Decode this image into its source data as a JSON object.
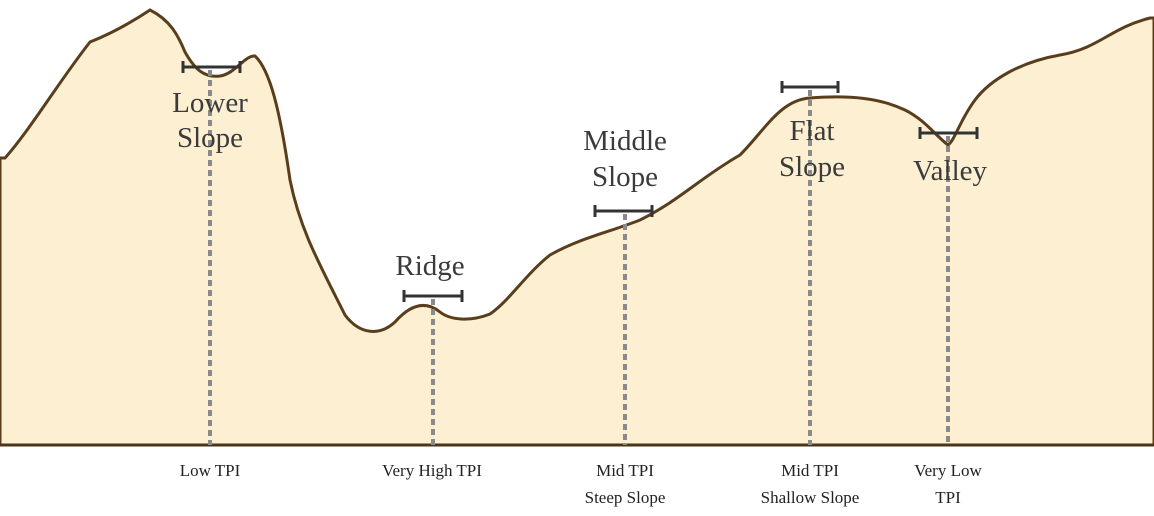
{
  "landforms": [
    {
      "label": [
        "Lower",
        "Slope"
      ],
      "tpi": [
        "Low TPI"
      ]
    },
    {
      "label": [
        "Ridge"
      ],
      "tpi": [
        "Very High TPI"
      ]
    },
    {
      "label": [
        "Middle",
        "Slope"
      ],
      "tpi": [
        "Mid TPI",
        "Steep Slope"
      ]
    },
    {
      "label": [
        "Flat",
        "Slope"
      ],
      "tpi": [
        "Mid TPI",
        "Shallow Slope"
      ]
    },
    {
      "label": [
        "Valley"
      ],
      "tpi": [
        "Very Low",
        "TPI"
      ]
    }
  ]
}
